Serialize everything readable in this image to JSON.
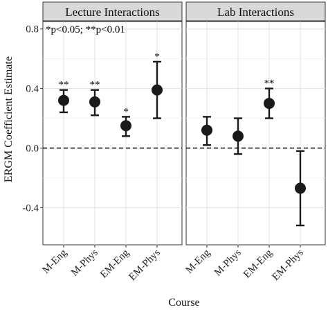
{
  "chart_data": {
    "type": "errorbar",
    "ylabel": "ERGM Coefficient Estimate",
    "xlabel": "Course",
    "annotation": "*p<0.05; **p<0.01",
    "ylim": [
      -0.65,
      0.85
    ],
    "yticks": [
      -0.4,
      0.0,
      0.4,
      0.8
    ],
    "ytick_labels": [
      "-0.4",
      "0.0",
      "0.4",
      "0.8"
    ],
    "reference_line": 0.0,
    "categories": [
      "M-Eng",
      "M-Phys",
      "EM-Eng",
      "EM-Phys"
    ],
    "panels": [
      {
        "title": "Lecture Interactions",
        "estimates": [
          0.32,
          0.31,
          0.15,
          0.39
        ],
        "lower": [
          0.24,
          0.22,
          0.08,
          0.2
        ],
        "upper": [
          0.39,
          0.39,
          0.21,
          0.58
        ],
        "significance": [
          "**",
          "**",
          "*",
          "*"
        ]
      },
      {
        "title": "Lab Interactions",
        "estimates": [
          0.12,
          0.08,
          0.3,
          -0.27
        ],
        "lower": [
          0.02,
          -0.04,
          0.2,
          -0.52
        ],
        "upper": [
          0.21,
          0.2,
          0.4,
          -0.02
        ],
        "significance": [
          "",
          "",
          "**",
          ""
        ]
      }
    ]
  }
}
